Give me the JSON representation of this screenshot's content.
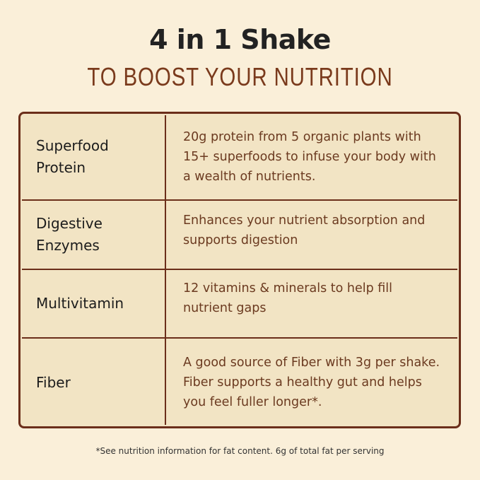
{
  "header": {
    "title": "4 in 1 Shake",
    "subtitle": "TO BOOST YOUR NUTRITION"
  },
  "rows": [
    {
      "name": "Superfood Protein",
      "description": "20g protein from 5 organic plants with 15+ superfoods to infuse your body with a wealth of nutrients."
    },
    {
      "name": "Digestive Enzymes",
      "description": "Enhances your nutrient absorption and supports digestion"
    },
    {
      "name": "Multivitamin",
      "description": "12 vitamins & minerals to help fill nutrient gaps"
    },
    {
      "name": "Fiber",
      "description": "A good source of Fiber with 3g per shake. Fiber supports a healthy gut and helps you feel fuller longer*."
    }
  ],
  "footnote": "*See nutrition information for fat content. 6g of total fat per serving",
  "colors": {
    "background": "#faefd9",
    "table_fill": "#f2e4c4",
    "border": "#6b2e1a",
    "accent_text": "#7a3a1c"
  }
}
